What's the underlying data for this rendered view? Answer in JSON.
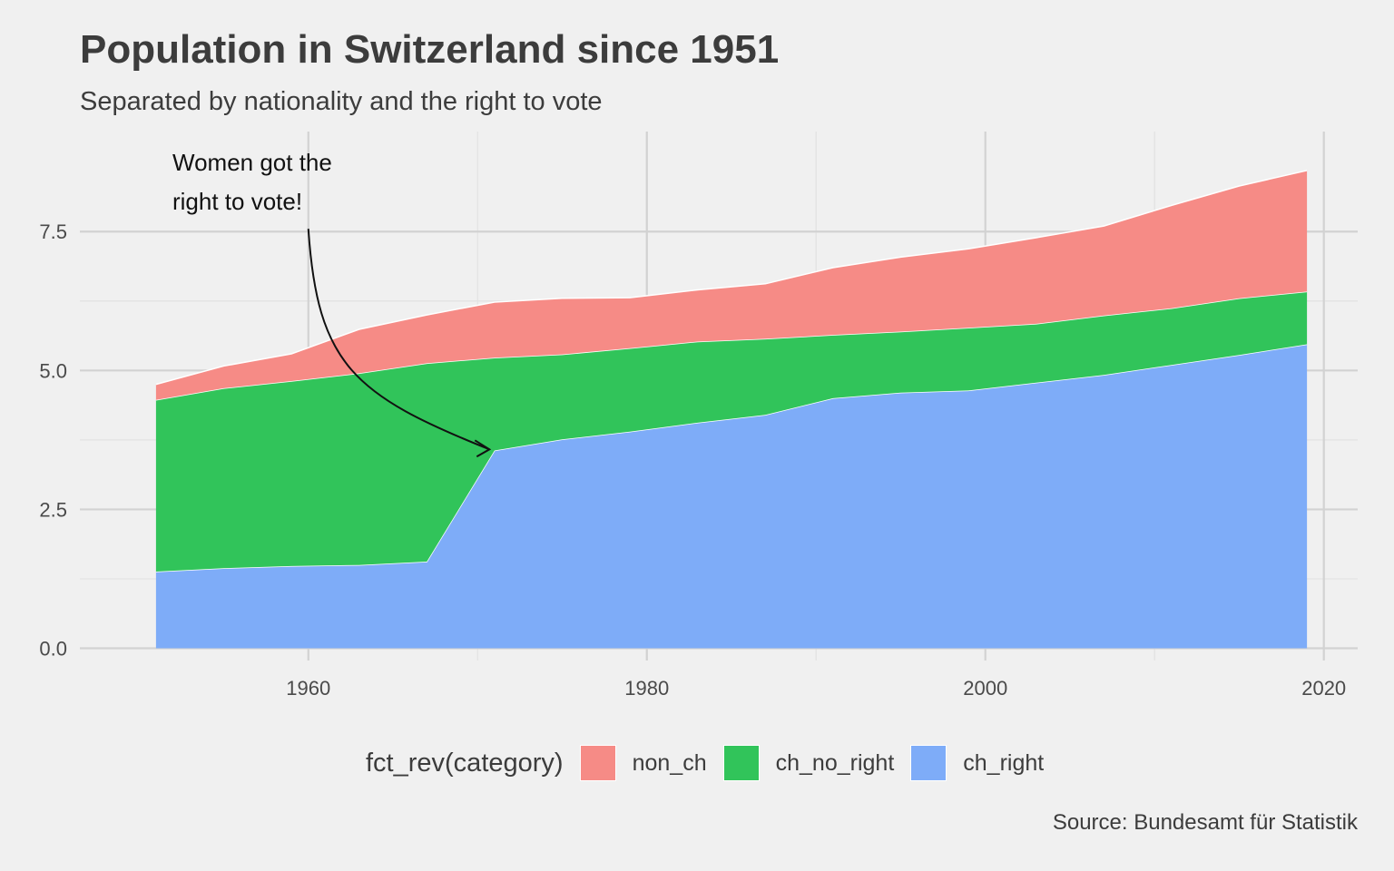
{
  "chart_data": {
    "type": "area",
    "stacked": true,
    "title": "Population in Switzerland since 1951",
    "subtitle": "Separated by nationality and the right to vote",
    "caption": "Source: Bundesamt für Statistik",
    "xlabel": "",
    "ylabel": "",
    "xlim": [
      1946.5,
      2022
    ],
    "ylim": [
      -0.22,
      9.3
    ],
    "x_ticks": [
      1960,
      1980,
      2000,
      2020
    ],
    "y_ticks": [
      0.0,
      2.5,
      5.0,
      7.5
    ],
    "y_tick_labels": [
      "0.0",
      "2.5",
      "5.0",
      "7.5"
    ],
    "grid": true,
    "legend_title": "fct_rev(category)",
    "legend_position": "bottom",
    "x": [
      1951,
      1955,
      1959,
      1963,
      1967,
      1971,
      1975,
      1979,
      1983,
      1987,
      1991,
      1995,
      1999,
      2003,
      2007,
      2011,
      2015,
      2019
    ],
    "series": [
      {
        "name": "ch_right",
        "color": "#7eacf8",
        "values": [
          1.38,
          1.44,
          1.48,
          1.5,
          1.56,
          3.56,
          3.76,
          3.9,
          4.06,
          4.2,
          4.5,
          4.6,
          4.64,
          4.78,
          4.92,
          5.1,
          5.28,
          5.47
        ]
      },
      {
        "name": "ch_no_right",
        "color": "#31c45a",
        "values": [
          3.09,
          3.24,
          3.33,
          3.45,
          3.57,
          1.67,
          1.53,
          1.5,
          1.46,
          1.37,
          1.14,
          1.1,
          1.13,
          1.06,
          1.07,
          1.02,
          1.02,
          0.95
        ]
      },
      {
        "name": "non_ch",
        "color": "#f68b86",
        "values": [
          0.28,
          0.4,
          0.49,
          0.79,
          0.87,
          1.0,
          1.01,
          0.91,
          0.93,
          0.99,
          1.21,
          1.34,
          1.42,
          1.55,
          1.61,
          1.85,
          2.02,
          2.18
        ]
      }
    ],
    "legend_order": [
      "non_ch",
      "ch_no_right",
      "ch_right"
    ],
    "annotation": {
      "lines": [
        "Women got the",
        "right to vote!"
      ],
      "arrow_from": [
        1960,
        7.55
      ],
      "arrow_to": [
        1970.7,
        3.58
      ]
    }
  }
}
